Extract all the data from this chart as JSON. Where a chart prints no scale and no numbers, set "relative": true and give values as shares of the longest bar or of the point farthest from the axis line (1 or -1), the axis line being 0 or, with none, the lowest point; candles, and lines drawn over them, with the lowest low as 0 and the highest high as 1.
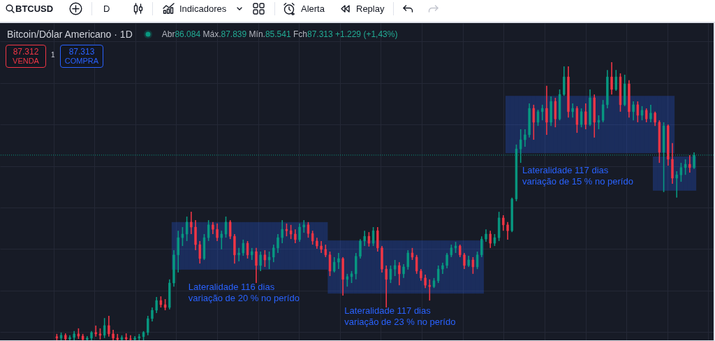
{
  "chart_data": {
    "type": "candlestick",
    "title": "Bitcoin/Dólar Americano · 1D",
    "subtitle": "Abr86.084 Máx.87.839 Mín.85.541 Fch87.313 +1.229 (+1,43%)",
    "annotations": [
      "BTCUSD",
      "D",
      "Indicadores",
      "Alerta",
      "Replay",
      "87.312",
      "VENDA",
      "1",
      "87.313",
      "COMPRA"
    ],
    "relative": true,
    "tick_labels": false,
    "grid": true,
    "categories": [
      null,
      null,
      null,
      null,
      null,
      null,
      null,
      null,
      null,
      null,
      null,
      null,
      null,
      null,
      null,
      null,
      null,
      null,
      null,
      null,
      null,
      null,
      null,
      null,
      null,
      null,
      null,
      null,
      null,
      null,
      null,
      null,
      null,
      null,
      null,
      null,
      null,
      null,
      null,
      null,
      null,
      null,
      null,
      null,
      null,
      null,
      null,
      null,
      null,
      null,
      null,
      null,
      null,
      null,
      null,
      null,
      null,
      null,
      null,
      null,
      null,
      null,
      null,
      null,
      null,
      null,
      null,
      null,
      null,
      null,
      null,
      null,
      null,
      null,
      null,
      null,
      null,
      null,
      null,
      null,
      null,
      null,
      null,
      null,
      null,
      null,
      null,
      null,
      null,
      null,
      null,
      null,
      null,
      null,
      null,
      null,
      null,
      null,
      null,
      null,
      null,
      null,
      null,
      null,
      null,
      null,
      null,
      null,
      null,
      null,
      null,
      null,
      null,
      null,
      null,
      null,
      null,
      null,
      null,
      null,
      null,
      null,
      null,
      null,
      null,
      null,
      null,
      null,
      null,
      null,
      null,
      null,
      null,
      null,
      null,
      null,
      null,
      null,
      null,
      null,
      null,
      null,
      null,
      null,
      null,
      null,
      null,
      null
    ],
    "ohlc": [
      [
        0.013,
        0.023,
        0,
        0.008
      ],
      [
        0.008,
        0.028,
        0,
        0.018
      ],
      [
        0.018,
        0.025,
        0,
        0.005
      ],
      [
        0.005,
        0.018,
        0,
        0.01
      ],
      [
        0.01,
        0.033,
        0,
        0.023
      ],
      [
        0.023,
        0.043,
        0.005,
        0.015
      ],
      [
        0.015,
        0.023,
        0,
        0.003
      ],
      [
        0.003,
        0.015,
        0,
        0.008
      ],
      [
        0.008,
        0.033,
        0,
        0.028
      ],
      [
        0.028,
        0.053,
        0.013,
        0.023
      ],
      [
        0.023,
        0.043,
        0.003,
        0.018
      ],
      [
        0.018,
        0.08,
        0.008,
        0.053
      ],
      [
        0.053,
        0.088,
        0.013,
        0.023
      ],
      [
        0.023,
        0.038,
        0,
        0.008
      ],
      [
        0.008,
        0.023,
        0,
        0.003
      ],
      [
        0.003,
        0.018,
        0,
        0.01
      ],
      [
        0.01,
        0.025,
        0,
        0.005
      ],
      [
        0.005,
        0.018,
        0,
        0.003
      ],
      [
        0.003,
        0.015,
        0,
        0.008
      ],
      [
        0.008,
        0.023,
        0,
        0.013
      ],
      [
        0.013,
        0.033,
        0,
        0.028
      ],
      [
        0.028,
        0.088,
        0.018,
        0.078
      ],
      [
        0.078,
        0.118,
        0.068,
        0.108
      ],
      [
        0.108,
        0.156,
        0.098,
        0.143
      ],
      [
        0.143,
        0.158,
        0.118,
        0.128
      ],
      [
        0.128,
        0.148,
        0.108,
        0.118
      ],
      [
        0.118,
        0.219,
        0.111,
        0.206
      ],
      [
        0.206,
        0.324,
        0.193,
        0.307
      ],
      [
        0.307,
        0.394,
        0.244,
        0.369
      ],
      [
        0.369,
        0.407,
        0.339,
        0.382
      ],
      [
        0.382,
        0.445,
        0.357,
        0.425
      ],
      [
        0.425,
        0.462,
        0.382,
        0.407
      ],
      [
        0.407,
        0.432,
        0.324,
        0.344
      ],
      [
        0.344,
        0.357,
        0.276,
        0.294
      ],
      [
        0.294,
        0.382,
        0.289,
        0.369
      ],
      [
        0.369,
        0.432,
        0.357,
        0.415
      ],
      [
        0.415,
        0.425,
        0.382,
        0.399
      ],
      [
        0.399,
        0.42,
        0.357,
        0.369
      ],
      [
        0.369,
        0.394,
        0.327,
        0.382
      ],
      [
        0.382,
        0.445,
        0.369,
        0.425
      ],
      [
        0.425,
        0.432,
        0.364,
        0.374
      ],
      [
        0.374,
        0.382,
        0.276,
        0.307
      ],
      [
        0.307,
        0.332,
        0.284,
        0.314
      ],
      [
        0.314,
        0.362,
        0.304,
        0.349
      ],
      [
        0.349,
        0.357,
        0.294,
        0.307
      ],
      [
        0.307,
        0.332,
        0.289,
        0.319
      ],
      [
        0.319,
        0.332,
        0.206,
        0.269
      ],
      [
        0.269,
        0.319,
        0.249,
        0.307
      ],
      [
        0.307,
        0.324,
        0.264,
        0.289
      ],
      [
        0.289,
        0.319,
        0.256,
        0.299
      ],
      [
        0.299,
        0.344,
        0.281,
        0.332
      ],
      [
        0.332,
        0.382,
        0.314,
        0.369
      ],
      [
        0.369,
        0.432,
        0.349,
        0.399
      ],
      [
        0.399,
        0.42,
        0.374,
        0.394
      ],
      [
        0.394,
        0.415,
        0.364,
        0.382
      ],
      [
        0.382,
        0.399,
        0.349,
        0.362
      ],
      [
        0.362,
        0.42,
        0.354,
        0.407
      ],
      [
        0.407,
        0.432,
        0.387,
        0.415
      ],
      [
        0.415,
        0.425,
        0.369,
        0.384
      ],
      [
        0.384,
        0.394,
        0.344,
        0.357
      ],
      [
        0.357,
        0.369,
        0.329,
        0.339
      ],
      [
        0.339,
        0.357,
        0.314,
        0.327
      ],
      [
        0.327,
        0.344,
        0.299,
        0.307
      ],
      [
        0.307,
        0.319,
        0.231,
        0.249
      ],
      [
        0.249,
        0.299,
        0.244,
        0.281
      ],
      [
        0.281,
        0.314,
        0.256,
        0.294
      ],
      [
        0.294,
        0.299,
        0.161,
        0.219
      ],
      [
        0.219,
        0.239,
        0.193,
        0.229
      ],
      [
        0.229,
        0.249,
        0.206,
        0.239
      ],
      [
        0.239,
        0.314,
        0.219,
        0.302
      ],
      [
        0.302,
        0.364,
        0.294,
        0.357
      ],
      [
        0.357,
        0.394,
        0.339,
        0.374
      ],
      [
        0.374,
        0.389,
        0.337,
        0.349
      ],
      [
        0.349,
        0.407,
        0.339,
        0.394
      ],
      [
        0.394,
        0.407,
        0.319,
        0.332
      ],
      [
        0.332,
        0.339,
        0.244,
        0.256
      ],
      [
        0.256,
        0.269,
        0.118,
        0.219
      ],
      [
        0.219,
        0.269,
        0.206,
        0.256
      ],
      [
        0.256,
        0.289,
        0.231,
        0.269
      ],
      [
        0.269,
        0.281,
        0.198,
        0.239
      ],
      [
        0.239,
        0.274,
        0.224,
        0.264
      ],
      [
        0.264,
        0.324,
        0.254,
        0.314
      ],
      [
        0.314,
        0.332,
        0.289,
        0.299
      ],
      [
        0.299,
        0.307,
        0.239,
        0.249
      ],
      [
        0.249,
        0.256,
        0.214,
        0.224
      ],
      [
        0.224,
        0.236,
        0.188,
        0.198
      ],
      [
        0.198,
        0.219,
        0.143,
        0.193
      ],
      [
        0.193,
        0.224,
        0.188,
        0.214
      ],
      [
        0.214,
        0.269,
        0.206,
        0.256
      ],
      [
        0.256,
        0.279,
        0.239,
        0.269
      ],
      [
        0.269,
        0.314,
        0.259,
        0.307
      ],
      [
        0.307,
        0.344,
        0.299,
        0.332
      ],
      [
        0.332,
        0.354,
        0.314,
        0.339
      ],
      [
        0.339,
        0.344,
        0.299,
        0.307
      ],
      [
        0.307,
        0.314,
        0.256,
        0.269
      ],
      [
        0.269,
        0.304,
        0.264,
        0.289
      ],
      [
        0.289,
        0.299,
        0.239,
        0.264
      ],
      [
        0.264,
        0.319,
        0.256,
        0.307
      ],
      [
        0.307,
        0.374,
        0.299,
        0.364
      ],
      [
        0.364,
        0.399,
        0.354,
        0.382
      ],
      [
        0.382,
        0.394,
        0.332,
        0.349
      ],
      [
        0.349,
        0.382,
        0.339,
        0.369
      ],
      [
        0.369,
        0.462,
        0.357,
        0.44
      ],
      [
        0.44,
        0.45,
        0.394,
        0.415
      ],
      [
        0.415,
        0.425,
        0.362,
        0.394
      ],
      [
        0.394,
        0.513,
        0.389,
        0.508
      ],
      [
        0.508,
        0.704,
        0.5,
        0.688
      ],
      [
        0.688,
        0.759,
        0.638,
        0.721
      ],
      [
        0.721,
        0.759,
        0.696,
        0.739
      ],
      [
        0.739,
        0.852,
        0.729,
        0.834
      ],
      [
        0.834,
        0.847,
        0.721,
        0.784
      ],
      [
        0.784,
        0.829,
        0.771,
        0.822
      ],
      [
        0.822,
        0.847,
        0.791,
        0.834
      ],
      [
        0.834,
        0.915,
        0.739,
        0.784
      ],
      [
        0.784,
        0.877,
        0.771,
        0.859
      ],
      [
        0.859,
        0.872,
        0.766,
        0.796
      ],
      [
        0.796,
        0.902,
        0.791,
        0.884
      ],
      [
        0.884,
        0.985,
        0.879,
        0.947
      ],
      [
        0.947,
        0.985,
        0.801,
        0.822
      ],
      [
        0.822,
        0.852,
        0.801,
        0.834
      ],
      [
        0.834,
        0.842,
        0.746,
        0.776
      ],
      [
        0.776,
        0.834,
        0.766,
        0.822
      ],
      [
        0.822,
        0.852,
        0.759,
        0.776
      ],
      [
        0.776,
        0.902,
        0.771,
        0.872
      ],
      [
        0.872,
        0.884,
        0.729,
        0.784
      ],
      [
        0.784,
        0.809,
        0.759,
        0.791
      ],
      [
        0.791,
        0.864,
        0.784,
        0.847
      ],
      [
        0.847,
        0.972,
        0.834,
        0.947
      ],
      [
        0.947,
        1,
        0.884,
        0.902
      ],
      [
        0.902,
        0.972,
        0.897,
        0.947
      ],
      [
        0.947,
        0.96,
        0.822,
        0.847
      ],
      [
        0.847,
        0.955,
        0.842,
        0.922
      ],
      [
        0.922,
        0.935,
        0.801,
        0.822
      ],
      [
        0.822,
        0.859,
        0.791,
        0.847
      ],
      [
        0.847,
        0.859,
        0.784,
        0.809
      ],
      [
        0.809,
        0.842,
        0.791,
        0.827
      ],
      [
        0.827,
        0.834,
        0.784,
        0.796
      ],
      [
        0.796,
        0.847,
        0.784,
        0.817
      ],
      [
        0.817,
        0.822,
        0.771,
        0.784
      ],
      [
        0.784,
        0.791,
        0.638,
        0.676
      ],
      [
        0.676,
        0.784,
        0.533,
        0.771
      ],
      [
        0.771,
        0.776,
        0.628,
        0.651
      ],
      [
        0.651,
        0.709,
        0.563,
        0.583
      ],
      [
        0.583,
        0.608,
        0.513,
        0.595
      ],
      [
        0.595,
        0.638,
        0.57,
        0.621
      ],
      [
        0.621,
        0.651,
        0.595,
        0.633
      ],
      [
        0.633,
        0.666,
        0.603,
        0.621
      ],
      [
        0.621,
        0.676,
        0.616,
        0.666
      ]
    ],
    "colors": [
      "#f23645",
      "#089981",
      "#f23645",
      "#089981",
      "#089981",
      "#f23645",
      "#f23645",
      "#089981",
      "#089981",
      "#f23645",
      "#f23645",
      "#089981",
      "#f23645",
      "#f23645",
      "#f23645",
      "#089981",
      "#f23645",
      "#f23645",
      "#089981",
      "#089981",
      "#089981",
      "#089981",
      "#089981",
      "#089981",
      "#f23645",
      "#f23645",
      "#089981",
      "#089981",
      "#089981",
      "#089981",
      "#089981",
      "#f23645",
      "#f23645",
      "#f23645",
      "#089981",
      "#089981",
      "#f23645",
      "#f23645",
      "#089981",
      "#089981",
      "#f23645",
      "#f23645",
      "#089981",
      "#089981",
      "#f23645",
      "#089981",
      "#f23645",
      "#089981",
      "#f23645",
      "#089981",
      "#089981",
      "#089981",
      "#089981",
      "#f23645",
      "#f23645",
      "#f23645",
      "#089981",
      "#089981",
      "#f23645",
      "#f23645",
      "#f23645",
      "#f23645",
      "#f23645",
      "#f23645",
      "#089981",
      "#089981",
      "#f23645",
      "#089981",
      "#089981",
      "#089981",
      "#089981",
      "#089981",
      "#f23645",
      "#089981",
      "#f23645",
      "#f23645",
      "#f23645",
      "#089981",
      "#089981",
      "#f23645",
      "#089981",
      "#089981",
      "#f23645",
      "#f23645",
      "#f23645",
      "#f23645",
      "#f23645",
      "#089981",
      "#089981",
      "#089981",
      "#089981",
      "#089981",
      "#089981",
      "#f23645",
      "#f23645",
      "#089981",
      "#f23645",
      "#089981",
      "#089981",
      "#089981",
      "#f23645",
      "#089981",
      "#089981",
      "#f23645",
      "#f23645",
      "#089981",
      "#089981",
      "#089981",
      "#089981",
      "#089981",
      "#f23645",
      "#089981",
      "#089981",
      "#f23645",
      "#089981",
      "#f23645",
      "#089981",
      "#089981",
      "#f23645",
      "#089981",
      "#f23645",
      "#089981",
      "#f23645",
      "#089981",
      "#f23645",
      "#089981",
      "#089981",
      "#089981",
      "#f23645",
      "#089981",
      "#f23645",
      "#089981",
      "#f23645",
      "#089981",
      "#f23645",
      "#089981",
      "#f23645",
      "#089981",
      "#f23645",
      "#f23645",
      "#089981",
      "#f23645",
      "#f23645",
      "#089981",
      "#089981",
      "#089981",
      "#f23645",
      "#089981"
    ],
    "series": [
      {
        "type": "bar",
        "name": "Lateralidade 116 dias\nvariação de 20 % no perído",
        "color": "#2962ff",
        "values": [
          null,
          null,
          null,
          null,
          null,
          null,
          null,
          null,
          null,
          null,
          null,
          null,
          null,
          null,
          null,
          null,
          null,
          null,
          null,
          null,
          null,
          null,
          null,
          null,
          null,
          null,
          null,
          0.171,
          0.171,
          0.171,
          0.171,
          0.171,
          0.171,
          0.171,
          0.171,
          0.171,
          0.171,
          0.171,
          0.171,
          0.171,
          0.171,
          0.171,
          0.171,
          0.171,
          0.171,
          0.171,
          0.171,
          0.171,
          0.171,
          0.171,
          0.171,
          0.171,
          0.171,
          0.171,
          0.171,
          0.171,
          0.171,
          0.171,
          0.171,
          0.171,
          0.171,
          0.171,
          0.171,
          null,
          null,
          null,
          null,
          null,
          null,
          null,
          null,
          null,
          null,
          null,
          null,
          null,
          null,
          null,
          null,
          null,
          null,
          null,
          null,
          null,
          null,
          null,
          null,
          null,
          null,
          null,
          null,
          null,
          null,
          null,
          null,
          null,
          null,
          null,
          null,
          null,
          null,
          null,
          null,
          null,
          null,
          null,
          null,
          null,
          null,
          null,
          null,
          null,
          null,
          null,
          null,
          null,
          null,
          null,
          null,
          null,
          null,
          null,
          null,
          null,
          null,
          null,
          null,
          null,
          null,
          null,
          null,
          null,
          null,
          null,
          null,
          null,
          null,
          null,
          null,
          null,
          null,
          null,
          null,
          null,
          null,
          null,
          null,
          null
        ],
        "base": [
          null,
          null,
          null,
          null,
          null,
          null,
          null,
          null,
          null,
          null,
          null,
          null,
          null,
          null,
          null,
          null,
          null,
          null,
          null,
          null,
          null,
          null,
          null,
          null,
          null,
          null,
          null,
          0.254,
          0.254,
          0.254,
          0.254,
          0.254,
          0.254,
          0.254,
          0.254,
          0.254,
          0.254,
          0.254,
          0.254,
          0.254,
          0.254,
          0.254,
          0.254,
          0.254,
          0.254,
          0.254,
          0.254,
          0.254,
          0.254,
          0.254,
          0.254,
          0.254,
          0.254,
          0.254,
          0.254,
          0.254,
          0.254,
          0.254,
          0.254,
          0.254,
          0.254,
          0.254,
          0.254,
          null,
          null,
          null,
          null,
          null,
          null,
          null,
          null,
          null,
          null,
          null,
          null,
          null,
          null,
          null,
          null,
          null,
          null,
          null,
          null,
          null,
          null,
          null,
          null,
          null,
          null,
          null,
          null,
          null,
          null,
          null,
          null,
          null,
          null,
          null,
          null,
          null,
          null,
          null,
          null,
          null,
          null,
          null,
          null,
          null,
          null,
          null,
          null,
          null,
          null,
          null,
          null,
          null,
          null,
          null,
          null,
          null,
          null,
          null,
          null,
          null,
          null,
          null,
          null,
          null,
          null,
          null,
          null,
          null,
          null,
          null,
          null,
          null,
          null,
          null,
          null,
          null,
          null,
          null,
          null,
          null,
          null,
          null,
          null,
          null
        ]
      },
      {
        "type": "bar",
        "name": "Lateralidade 117 dias\nvariação de 23 % no perído",
        "color": "#2962ff",
        "values": [
          null,
          null,
          null,
          null,
          null,
          null,
          null,
          null,
          null,
          null,
          null,
          null,
          null,
          null,
          null,
          null,
          null,
          null,
          null,
          null,
          null,
          null,
          null,
          null,
          null,
          null,
          null,
          null,
          null,
          null,
          null,
          null,
          null,
          null,
          null,
          null,
          null,
          null,
          null,
          null,
          null,
          null,
          null,
          null,
          null,
          null,
          null,
          null,
          null,
          null,
          null,
          null,
          null,
          null,
          null,
          null,
          null,
          null,
          null,
          null,
          null,
          null,
          null,
          0.191,
          0.191,
          0.191,
          0.191,
          0.191,
          0.191,
          0.191,
          0.191,
          0.191,
          0.191,
          0.191,
          0.191,
          0.191,
          0.191,
          0.191,
          0.191,
          0.191,
          0.191,
          0.191,
          0.191,
          0.191,
          0.191,
          0.191,
          0.191,
          0.191,
          0.191,
          0.191,
          0.191,
          0.191,
          0.191,
          0.191,
          0.191,
          0.191,
          0.191,
          0.191,
          0.191,
          null,
          null,
          null,
          null,
          null,
          null,
          null,
          null,
          null,
          null,
          null,
          null,
          null,
          null,
          null,
          null,
          null,
          null,
          null,
          null,
          null,
          null,
          null,
          null,
          null,
          null,
          null,
          null,
          null,
          null,
          null,
          null,
          null,
          null,
          null,
          null,
          null,
          null,
          null,
          null,
          null,
          null,
          null,
          null,
          null,
          null,
          null,
          null,
          null
        ],
        "base": [
          null,
          null,
          null,
          null,
          null,
          null,
          null,
          null,
          null,
          null,
          null,
          null,
          null,
          null,
          null,
          null,
          null,
          null,
          null,
          null,
          null,
          null,
          null,
          null,
          null,
          null,
          null,
          null,
          null,
          null,
          null,
          null,
          null,
          null,
          null,
          null,
          null,
          null,
          null,
          null,
          null,
          null,
          null,
          null,
          null,
          null,
          null,
          null,
          null,
          null,
          null,
          null,
          null,
          null,
          null,
          null,
          null,
          null,
          null,
          null,
          null,
          null,
          null,
          0.168,
          0.168,
          0.168,
          0.168,
          0.168,
          0.168,
          0.168,
          0.168,
          0.168,
          0.168,
          0.168,
          0.168,
          0.168,
          0.168,
          0.168,
          0.168,
          0.168,
          0.168,
          0.168,
          0.168,
          0.168,
          0.168,
          0.168,
          0.168,
          0.168,
          0.168,
          0.168,
          0.168,
          0.168,
          0.168,
          0.168,
          0.168,
          0.168,
          0.168,
          0.168,
          0.168,
          null,
          null,
          null,
          null,
          null,
          null,
          null,
          null,
          null,
          null,
          null,
          null,
          null,
          null,
          null,
          null,
          null,
          null,
          null,
          null,
          null,
          null,
          null,
          null,
          null,
          null,
          null,
          null,
          null,
          null,
          null,
          null,
          null,
          null,
          null,
          null,
          null,
          null,
          null,
          null,
          null,
          null,
          null,
          null,
          null,
          null,
          null,
          null,
          null
        ]
      },
      {
        "type": "bar",
        "name": "Lateralidade 117 dias\nvariação de 15 % no perído",
        "color": "#2962ff",
        "values": [
          null,
          null,
          null,
          null,
          null,
          null,
          null,
          null,
          null,
          null,
          null,
          null,
          null,
          null,
          null,
          null,
          null,
          null,
          null,
          null,
          null,
          null,
          null,
          null,
          null,
          null,
          null,
          null,
          null,
          null,
          null,
          null,
          null,
          null,
          null,
          null,
          null,
          null,
          null,
          null,
          null,
          null,
          null,
          null,
          null,
          null,
          null,
          null,
          null,
          null,
          null,
          null,
          null,
          null,
          null,
          null,
          null,
          null,
          null,
          null,
          null,
          null,
          null,
          null,
          null,
          null,
          null,
          null,
          null,
          null,
          null,
          null,
          null,
          null,
          null,
          null,
          null,
          null,
          null,
          null,
          null,
          null,
          null,
          null,
          null,
          null,
          null,
          null,
          null,
          null,
          null,
          null,
          null,
          null,
          null,
          null,
          null,
          null,
          null,
          null,
          null,
          null,
          null,
          null,
          0.206,
          0.206,
          0.206,
          0.206,
          0.206,
          0.206,
          0.206,
          0.206,
          0.206,
          0.206,
          0.206,
          0.206,
          0.206,
          0.206,
          0.206,
          0.206,
          0.206,
          0.206,
          0.206,
          0.206,
          0.206,
          0.206,
          0.206,
          0.206,
          0.206,
          0.206,
          0.206,
          0.206,
          0.206,
          0.206,
          0.206,
          0.206,
          0.206,
          0.206,
          0.206,
          0.206,
          0.206,
          0.206,
          0.206,
          null,
          null,
          null,
          null,
          null
        ],
        "base": [
          null,
          null,
          null,
          null,
          null,
          null,
          null,
          null,
          null,
          null,
          null,
          null,
          null,
          null,
          null,
          null,
          null,
          null,
          null,
          null,
          null,
          null,
          null,
          null,
          null,
          null,
          null,
          null,
          null,
          null,
          null,
          null,
          null,
          null,
          null,
          null,
          null,
          null,
          null,
          null,
          null,
          null,
          null,
          null,
          null,
          null,
          null,
          null,
          null,
          null,
          null,
          null,
          null,
          null,
          null,
          null,
          null,
          null,
          null,
          null,
          null,
          null,
          null,
          null,
          null,
          null,
          null,
          null,
          null,
          null,
          null,
          null,
          null,
          null,
          null,
          null,
          null,
          null,
          null,
          null,
          null,
          null,
          null,
          null,
          null,
          null,
          null,
          null,
          null,
          null,
          null,
          null,
          null,
          null,
          null,
          null,
          null,
          null,
          null,
          null,
          null,
          null,
          null,
          null,
          0.673,
          0.673,
          0.673,
          0.673,
          0.673,
          0.673,
          0.673,
          0.673,
          0.673,
          0.673,
          0.673,
          0.673,
          0.673,
          0.673,
          0.673,
          0.673,
          0.673,
          0.673,
          0.673,
          0.673,
          0.673,
          0.673,
          0.673,
          0.673,
          0.673,
          0.673,
          0.673,
          0.673,
          0.673,
          0.673,
          0.673,
          0.673,
          0.673,
          0.673,
          0.673,
          0.673,
          0.673,
          0.673,
          0.673,
          null,
          null,
          null,
          null,
          null
        ]
      },
      {
        "type": "bar",
        "color": "#2962ff",
        "values": [
          null,
          null,
          null,
          null,
          null,
          null,
          null,
          null,
          null,
          null,
          null,
          null,
          null,
          null,
          null,
          null,
          null,
          null,
          null,
          null,
          null,
          null,
          null,
          null,
          null,
          null,
          null,
          null,
          null,
          null,
          null,
          null,
          null,
          null,
          null,
          null,
          null,
          null,
          null,
          null,
          null,
          null,
          null,
          null,
          null,
          null,
          null,
          null,
          null,
          null,
          null,
          null,
          null,
          null,
          null,
          null,
          null,
          null,
          null,
          null,
          null,
          null,
          null,
          null,
          null,
          null,
          null,
          null,
          null,
          null,
          null,
          null,
          null,
          null,
          null,
          null,
          null,
          null,
          null,
          null,
          null,
          null,
          null,
          null,
          null,
          null,
          null,
          null,
          null,
          null,
          null,
          null,
          null,
          null,
          null,
          null,
          null,
          null,
          null,
          null,
          null,
          null,
          null,
          null,
          null,
          null,
          null,
          null,
          null,
          null,
          null,
          null,
          null,
          null,
          null,
          null,
          null,
          null,
          null,
          null,
          null,
          null,
          null,
          null,
          null,
          null,
          null,
          null,
          null,
          null,
          null,
          null,
          null,
          null,
          null,
          null,
          null,
          null,
          0.123,
          0.123,
          0.123,
          0.123,
          0.123,
          0.123,
          0.123,
          0.123,
          0.123,
          0.123
        ],
        "base": [
          null,
          null,
          null,
          null,
          null,
          null,
          null,
          null,
          null,
          null,
          null,
          null,
          null,
          null,
          null,
          null,
          null,
          null,
          null,
          null,
          null,
          null,
          null,
          null,
          null,
          null,
          null,
          null,
          null,
          null,
          null,
          null,
          null,
          null,
          null,
          null,
          null,
          null,
          null,
          null,
          null,
          null,
          null,
          null,
          null,
          null,
          null,
          null,
          null,
          null,
          null,
          null,
          null,
          null,
          null,
          null,
          null,
          null,
          null,
          null,
          null,
          null,
          null,
          null,
          null,
          null,
          null,
          null,
          null,
          null,
          null,
          null,
          null,
          null,
          null,
          null,
          null,
          null,
          null,
          null,
          null,
          null,
          null,
          null,
          null,
          null,
          null,
          null,
          null,
          null,
          null,
          null,
          null,
          null,
          null,
          null,
          null,
          null,
          null,
          null,
          null,
          null,
          null,
          null,
          null,
          null,
          null,
          null,
          null,
          null,
          null,
          null,
          null,
          null,
          null,
          null,
          null,
          null,
          null,
          null,
          null,
          null,
          null,
          null,
          null,
          null,
          null,
          null,
          null,
          null,
          null,
          null,
          null,
          null,
          null,
          null,
          null,
          null,
          0.538,
          0.538,
          0.538,
          0.538,
          0.538,
          0.538,
          0.538,
          0.538,
          0.538,
          0.538
        ]
      }
    ],
    "ref_lines": [
      {
        "axis": "y",
        "value": 0.666,
        "color": "#089981",
        "line_style": "dotted"
      }
    ]
  }
}
